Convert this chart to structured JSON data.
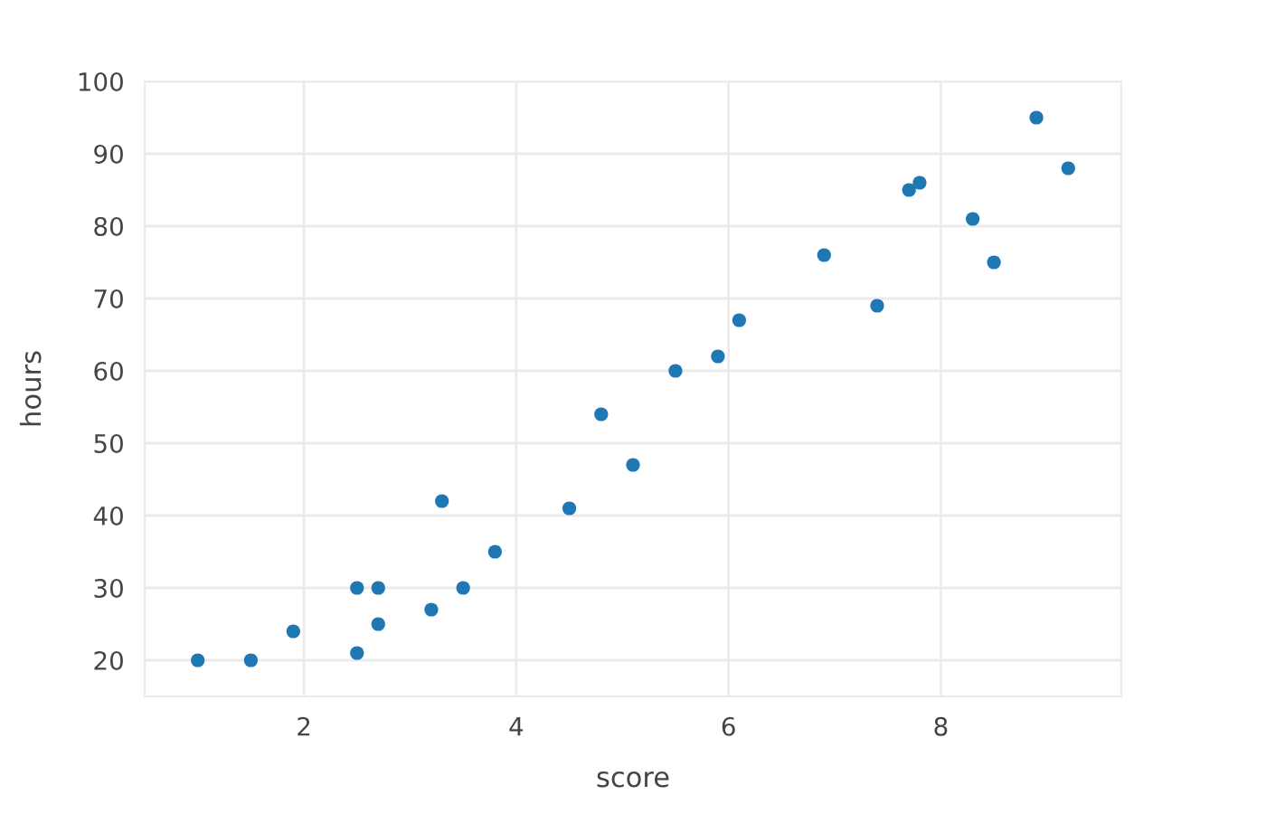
{
  "chart_data": {
    "type": "scatter",
    "xlabel": "score",
    "ylabel": "hours",
    "x": [
      1,
      1.5,
      1.9,
      2.5,
      2.7,
      2.5,
      2.7,
      3.2,
      3.3,
      3.5,
      3.8,
      4.5,
      4.8,
      5.1,
      5.5,
      5.9,
      6.1,
      6.9,
      7.4,
      7.7,
      7.8,
      8.3,
      8.5,
      8.9,
      9.2
    ],
    "series": [
      {
        "color": "#1f77b4",
        "values": [
          20,
          20,
          24,
          30,
          30,
          21,
          25,
          27,
          42,
          30,
          35,
          41,
          54,
          47,
          60,
          62,
          67,
          76,
          69,
          85,
          86,
          81,
          75,
          95,
          88
        ]
      }
    ],
    "xlim": [
      0.5,
      9.7
    ],
    "xticks": [
      2,
      4,
      6,
      8
    ],
    "ylim": [
      15,
      100
    ],
    "yticks": [
      20,
      30,
      40,
      50,
      60,
      70,
      80,
      90,
      100
    ],
    "grid": true,
    "marker": "circle",
    "legend": false
  }
}
